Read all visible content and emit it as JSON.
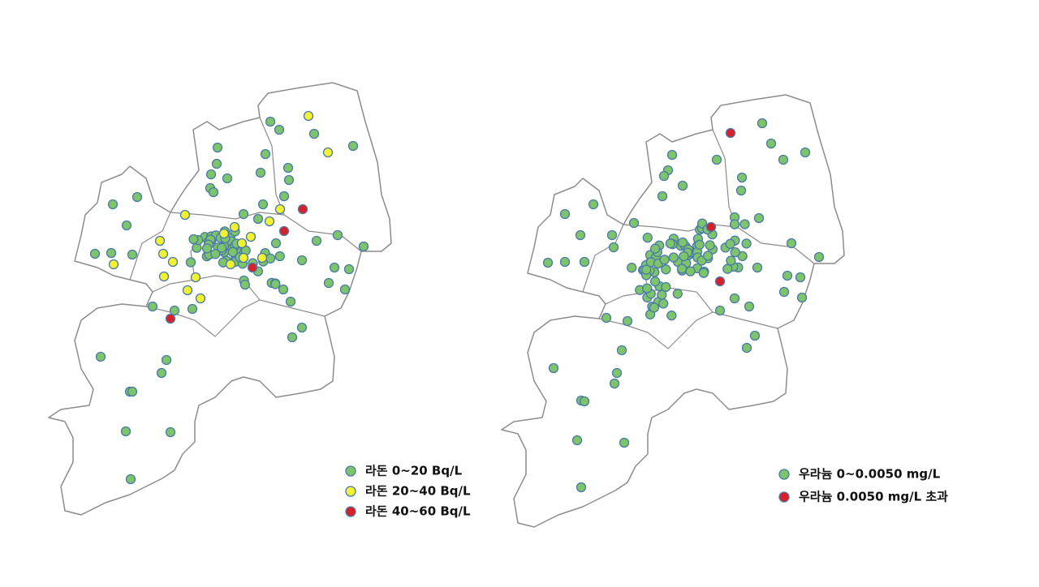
{
  "maps": [
    {
      "legend": [
        {
          "label": "라돈  0~20 Bq/L",
          "color": "#7dc46b"
        },
        {
          "label": "라돈 20~40 Bq/L",
          "color": "#f2f230"
        },
        {
          "label": "라돈 40~60 Bq/L",
          "color": "#d8202a"
        }
      ]
    },
    {
      "legend": [
        {
          "label": "우라늄 0~0.0050 mg/L",
          "color": "#7dc46b"
        },
        {
          "label": "우라늄 0.0050 mg/L 초과",
          "color": "#d8202a"
        }
      ]
    }
  ]
}
